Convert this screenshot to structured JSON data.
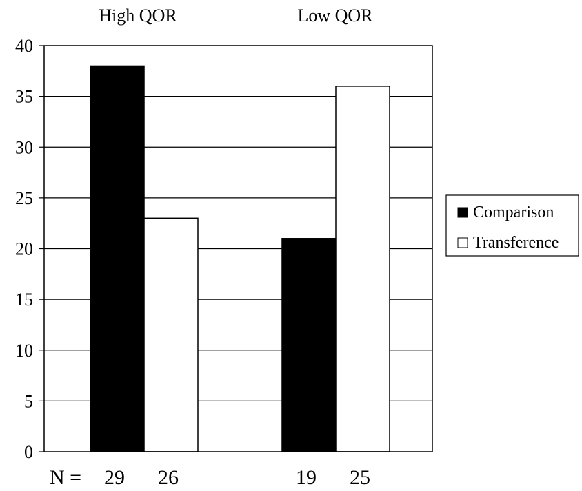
{
  "chart_data": {
    "type": "bar",
    "categories": [
      "High QOR",
      "Low QOR"
    ],
    "series": [
      {
        "name": "Comparison",
        "values": [
          38,
          21
        ],
        "n": [
          "29",
          "19"
        ]
      },
      {
        "name": "Transference",
        "values": [
          23,
          36
        ],
        "n": [
          "26",
          "25"
        ]
      }
    ],
    "n_prefix": "N =",
    "yticks": [
      0,
      5,
      10,
      15,
      20,
      25,
      30,
      35,
      40
    ],
    "ylim": [
      0,
      40
    ],
    "grid": true,
    "legend_position": "right",
    "title": "",
    "xlabel": "",
    "ylabel": ""
  },
  "colors": {
    "comparison": "#000000",
    "transference": "#ffffff",
    "grid": "#000000",
    "background": "#ffffff"
  }
}
